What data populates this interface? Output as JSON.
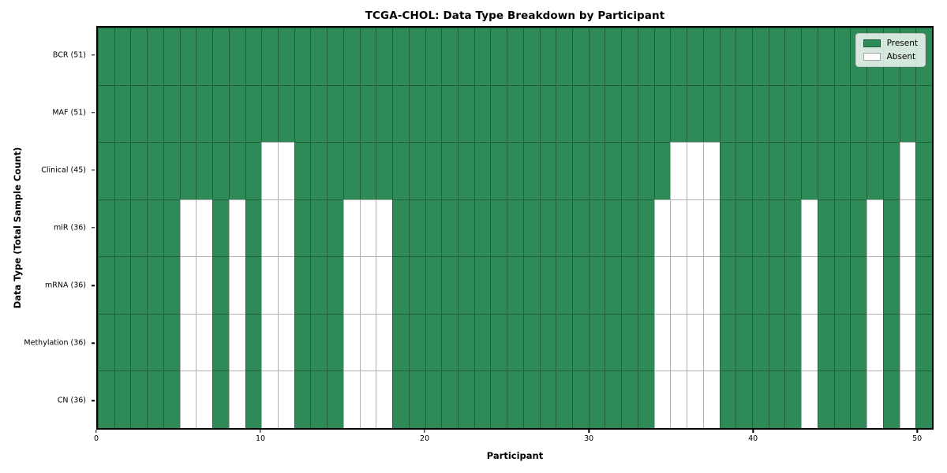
{
  "figure": {
    "title": "TCGA-CHOL: Data Type Breakdown by Participant",
    "xlabel": "Participant",
    "ylabel": "Data Type (Total Sample Count)"
  },
  "legend": {
    "items": [
      {
        "label": "Present",
        "color": "#2e8b57"
      },
      {
        "label": "Absent",
        "color": "#ffffff"
      }
    ]
  },
  "chart_data": {
    "type": "heatmap",
    "title": "TCGA-CHOL: Data Type Breakdown by Participant",
    "xlabel": "Participant",
    "ylabel": "Data Type (Total Sample Count)",
    "x_ticks": [
      0,
      10,
      20,
      30,
      40,
      50
    ],
    "x_range": [
      0,
      51
    ],
    "n_participants": 51,
    "grid": true,
    "legend_position": "upper right",
    "present_color": "#2e8b57",
    "absent_color": "#ffffff",
    "gridline_color": "rgba(0,0,0,0.30)",
    "rows": [
      {
        "label": "BCR (51)",
        "data_type": "BCR",
        "total": 51,
        "absent_participants": []
      },
      {
        "label": "MAF (51)",
        "data_type": "MAF",
        "total": 51,
        "absent_participants": []
      },
      {
        "label": "Clinical (45)",
        "data_type": "Clinical",
        "total": 45,
        "absent_participants": [
          10,
          11,
          35,
          36,
          37,
          49
        ]
      },
      {
        "label": "miR (36)",
        "data_type": "miR",
        "total": 36,
        "absent_participants": [
          5,
          6,
          8,
          10,
          11,
          15,
          16,
          17,
          34,
          35,
          36,
          37,
          43,
          47,
          49
        ]
      },
      {
        "label": "mRNA (36)",
        "data_type": "mRNA",
        "total": 36,
        "absent_participants": [
          5,
          6,
          8,
          10,
          11,
          15,
          16,
          17,
          34,
          35,
          36,
          37,
          43,
          47,
          49
        ]
      },
      {
        "label": "Methylation (36)",
        "data_type": "Methylation",
        "total": 36,
        "absent_participants": [
          5,
          6,
          8,
          10,
          11,
          15,
          16,
          17,
          34,
          35,
          36,
          37,
          43,
          47,
          49
        ]
      },
      {
        "label": "CN (36)",
        "data_type": "CN",
        "total": 36,
        "absent_participants": [
          5,
          6,
          8,
          10,
          11,
          15,
          16,
          17,
          34,
          35,
          36,
          37,
          43,
          47,
          49
        ]
      }
    ]
  }
}
